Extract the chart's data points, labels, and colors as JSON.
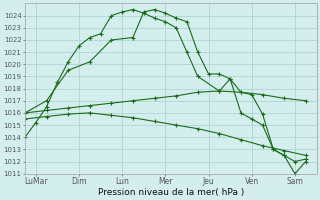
{
  "xlabel": "Pression niveau de la mer( hPa )",
  "bg_color": "#d4eeee",
  "grid_color": "#aed4d4",
  "line_color": "#1a6b1a",
  "ylim_min": 1011,
  "ylim_max": 1025,
  "xlim_min": 0,
  "xlim_max": 13.5,
  "x_tick_positions": [
    0.5,
    2.5,
    4.5,
    6.5,
    8.5,
    10.5,
    12.5
  ],
  "x_tick_labels": [
    "LuMar",
    "Dim",
    "Lun",
    "Mer",
    "Jeu",
    "Ven",
    "Sam"
  ],
  "series1_x": [
    0,
    1,
    2,
    3,
    4,
    5,
    5.5,
    6,
    6.5,
    7,
    7.5,
    8,
    8.5,
    9,
    9.5,
    10,
    10.5,
    11,
    11.5,
    12,
    12.5,
    13
  ],
  "series1_y": [
    1016.0,
    1017.0,
    1019.5,
    1020.2,
    1022.0,
    1022.2,
    1024.3,
    1024.5,
    1024.2,
    1023.8,
    1023.5,
    1021.0,
    1019.2,
    1019.2,
    1018.8,
    1017.7,
    1017.5,
    1015.9,
    1013.0,
    1012.5,
    1012.0,
    1012.2
  ],
  "series2_x": [
    0,
    0.5,
    1,
    1.5,
    2,
    2.5,
    3,
    3.5,
    4,
    4.5,
    5,
    5.5,
    6,
    6.5,
    7,
    7.5,
    8,
    9,
    9.5,
    10,
    10.5,
    11,
    11.5,
    12,
    12.5,
    13
  ],
  "series2_y": [
    1014.0,
    1015.2,
    1016.5,
    1018.5,
    1020.2,
    1021.5,
    1022.2,
    1022.5,
    1024.0,
    1024.3,
    1024.5,
    1024.2,
    1023.8,
    1023.5,
    1023.0,
    1021.0,
    1019.0,
    1017.8,
    1018.8,
    1016.0,
    1015.5,
    1015.0,
    1013.0,
    1012.5,
    1011.0,
    1012.0
  ],
  "series3_x": [
    0,
    1,
    2,
    3,
    4,
    5,
    6,
    7,
    8,
    9,
    10,
    11,
    12,
    13
  ],
  "series3_y": [
    1016.0,
    1016.2,
    1016.4,
    1016.6,
    1016.8,
    1017.0,
    1017.2,
    1017.4,
    1017.7,
    1017.8,
    1017.7,
    1017.5,
    1017.2,
    1017.0
  ],
  "series4_x": [
    0,
    1,
    2,
    3,
    4,
    5,
    6,
    7,
    8,
    9,
    10,
    11,
    12,
    13
  ],
  "series4_y": [
    1015.5,
    1015.7,
    1015.9,
    1016.0,
    1015.8,
    1015.6,
    1015.3,
    1015.0,
    1014.7,
    1014.3,
    1013.8,
    1013.3,
    1012.9,
    1012.5
  ]
}
